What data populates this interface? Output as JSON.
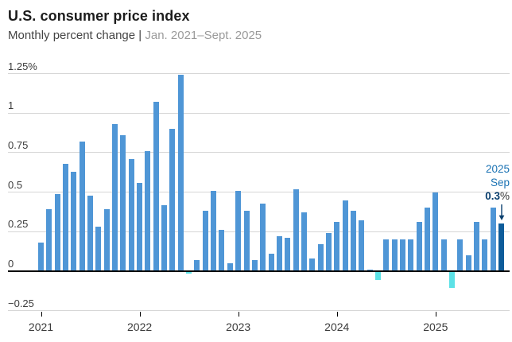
{
  "header": {
    "title": "U.S. consumer price index",
    "subtitle_main": "Monthly percent change ",
    "subtitle_sep": "| ",
    "subtitle_range": "Jan. 2021–Sept. 2025"
  },
  "annotation": {
    "line1": "2025",
    "line2": "Sep",
    "value": "0.3",
    "pct": "%"
  },
  "colors": {
    "bar": "#4f96d6",
    "bar_negative": "#5ce1e6",
    "bar_highlight": "#0e5c9a",
    "annotation_text": "#1a72b3",
    "annotation_value": "#0a3f6e",
    "gridline": "#d6d6d6",
    "zeroline": "#000000"
  },
  "chart_data": {
    "type": "bar",
    "title": "U.S. consumer price index",
    "subtitle": "Monthly percent change | Jan. 2021–Sept. 2025",
    "xlabel": "",
    "ylabel": "Monthly percent change",
    "ylim": [
      -0.25,
      1.25
    ],
    "yticks": [
      "1.25%",
      "1",
      "0.75",
      "0.5",
      "0.25",
      "0",
      "−0.25"
    ],
    "ytick_values": [
      1.25,
      1,
      0.75,
      0.5,
      0.25,
      0,
      -0.25
    ],
    "year_labels": [
      "2021",
      "2022",
      "2023",
      "2024",
      "2025"
    ],
    "categories": [
      "Jan 2021",
      "Feb 2021",
      "Mar 2021",
      "Apr 2021",
      "May 2021",
      "Jun 2021",
      "Jul 2021",
      "Aug 2021",
      "Sep 2021",
      "Oct 2021",
      "Nov 2021",
      "Dec 2021",
      "Jan 2022",
      "Feb 2022",
      "Mar 2022",
      "Apr 2022",
      "May 2022",
      "Jun 2022",
      "Jul 2022",
      "Aug 2022",
      "Sep 2022",
      "Oct 2022",
      "Nov 2022",
      "Dec 2022",
      "Jan 2023",
      "Feb 2023",
      "Mar 2023",
      "Apr 2023",
      "May 2023",
      "Jun 2023",
      "Jul 2023",
      "Aug 2023",
      "Sep 2023",
      "Oct 2023",
      "Nov 2023",
      "Dec 2023",
      "Jan 2024",
      "Feb 2024",
      "Mar 2024",
      "Apr 2024",
      "May 2024",
      "Jun 2024",
      "Jul 2024",
      "Aug 2024",
      "Sep 2024",
      "Oct 2024",
      "Nov 2024",
      "Dec 2024",
      "Jan 2025",
      "Feb 2025",
      "Mar 2025",
      "Apr 2025",
      "May 2025",
      "Jun 2025",
      "Jul 2025",
      "Aug 2025",
      "Sep 2025"
    ],
    "values": [
      0.18,
      0.39,
      0.49,
      0.68,
      0.63,
      0.82,
      0.48,
      0.28,
      0.39,
      0.93,
      0.86,
      0.71,
      0.56,
      0.76,
      1.07,
      0.42,
      0.9,
      1.24,
      -0.01,
      0.07,
      0.38,
      0.51,
      0.26,
      0.05,
      0.51,
      0.38,
      0.07,
      0.43,
      0.11,
      0.22,
      0.21,
      0.52,
      0.37,
      0.08,
      0.17,
      0.24,
      0.31,
      0.45,
      0.38,
      0.32,
      0.01,
      -0.05,
      0.2,
      0.2,
      0.2,
      0.2,
      0.31,
      0.4,
      0.5,
      0.2,
      -0.1,
      0.2,
      0.1,
      0.31,
      0.2,
      0.4,
      0.3
    ],
    "highlight_last": true,
    "grid": true,
    "legend": false
  }
}
